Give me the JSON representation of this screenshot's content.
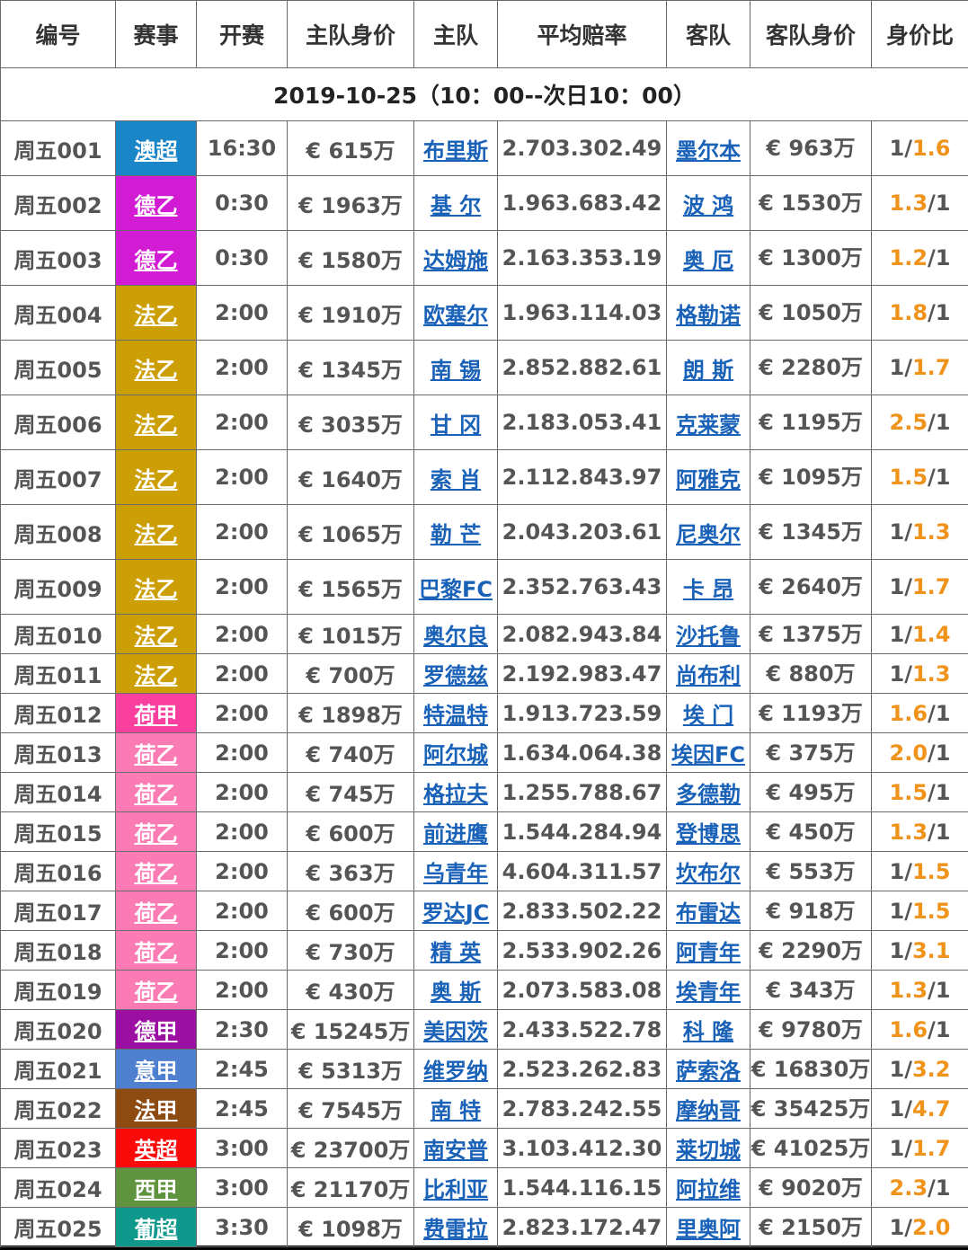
{
  "headers": [
    "编号",
    "赛事",
    "开赛",
    "主队身价",
    "主队",
    "平均赔率",
    "客队",
    "客队身价",
    "身价比"
  ],
  "date_title": "2019-10-25（10：00--次日10：00）",
  "rows": [
    {
      "id": "周五001",
      "league": "澳超",
      "color": "#1a86c8",
      "time": "16:30",
      "home_val": "€ 615万",
      "home": "布里斯",
      "odds": "2.703.302.49",
      "away": "墨尔本",
      "away_val": "€ 963万",
      "ratio": [
        "1/",
        "1.6"
      ]
    },
    {
      "id": "周五002",
      "league": "德乙",
      "color": "#d21cd4",
      "time": "0:30",
      "home_val": "€ 1963万",
      "home": "基 尔",
      "odds": "1.963.683.42",
      "away": "波 鸿",
      "away_val": "€ 1530万",
      "ratio": [
        "1.3",
        "/1"
      ]
    },
    {
      "id": "周五003",
      "league": "德乙",
      "color": "#d21cd4",
      "time": "0:30",
      "home_val": "€ 1580万",
      "home": "达姆施",
      "odds": "2.163.353.19",
      "away": "奥 厄",
      "away_val": "€ 1300万",
      "ratio": [
        "1.2",
        "/1"
      ]
    },
    {
      "id": "周五004",
      "league": "法乙",
      "color": "#cc9f06",
      "time": "2:00",
      "home_val": "€ 1910万",
      "home": "欧塞尔",
      "odds": "1.963.114.03",
      "away": "格勒诺",
      "away_val": "€ 1050万",
      "ratio": [
        "1.8",
        "/1"
      ]
    },
    {
      "id": "周五005",
      "league": "法乙",
      "color": "#cc9f06",
      "time": "2:00",
      "home_val": "€ 1345万",
      "home": "南 锡",
      "odds": "2.852.882.61",
      "away": "朗 斯",
      "away_val": "€ 2280万",
      "ratio": [
        "1/",
        "1.7"
      ]
    },
    {
      "id": "周五006",
      "league": "法乙",
      "color": "#cc9f06",
      "time": "2:00",
      "home_val": "€ 3035万",
      "home": "甘 冈",
      "odds": "2.183.053.41",
      "away": "克莱蒙",
      "away_val": "€ 1195万",
      "ratio": [
        "2.5",
        "/1"
      ]
    },
    {
      "id": "周五007",
      "league": "法乙",
      "color": "#cc9f06",
      "time": "2:00",
      "home_val": "€ 1640万",
      "home": "索 肖",
      "odds": "2.112.843.97",
      "away": "阿雅克",
      "away_val": "€ 1095万",
      "ratio": [
        "1.5",
        "/1"
      ]
    },
    {
      "id": "周五008",
      "league": "法乙",
      "color": "#cc9f06",
      "time": "2:00",
      "home_val": "€ 1065万",
      "home": "勒 芒",
      "odds": "2.043.203.61",
      "away": "尼奥尔",
      "away_val": "€ 1345万",
      "ratio": [
        "1/",
        "1.3"
      ]
    },
    {
      "id": "周五009",
      "league": "法乙",
      "color": "#cc9f06",
      "time": "2:00",
      "home_val": "€ 1565万",
      "home": "巴黎FC",
      "odds": "2.352.763.43",
      "away": "卡 昂",
      "away_val": "€ 2640万",
      "ratio": [
        "1/",
        "1.7"
      ]
    },
    {
      "id": "周五010",
      "league": "法乙",
      "color": "#cc9f06",
      "time": "2:00",
      "home_val": "€ 1015万",
      "home": "奥尔良",
      "odds": "2.082.943.84",
      "away": "沙托鲁",
      "away_val": "€ 1375万",
      "ratio": [
        "1/",
        "1.4"
      ]
    },
    {
      "id": "周五011",
      "league": "法乙",
      "color": "#cc9f06",
      "time": "2:00",
      "home_val": "€ 700万",
      "home": "罗德兹",
      "odds": "2.192.983.47",
      "away": "尚布利",
      "away_val": "€ 880万",
      "ratio": [
        "1/",
        "1.3"
      ]
    },
    {
      "id": "周五012",
      "league": "荷甲",
      "color": "#f9409f",
      "time": "2:00",
      "home_val": "€ 1898万",
      "home": "特温特",
      "odds": "1.913.723.59",
      "away": "埃 门",
      "away_val": "€ 1193万",
      "ratio": [
        "1.6",
        "/1"
      ]
    },
    {
      "id": "周五013",
      "league": "荷乙",
      "color": "#fb7cb5",
      "time": "2:00",
      "home_val": "€ 740万",
      "home": "阿尔城",
      "odds": "1.634.064.38",
      "away": "埃因FC",
      "away_val": "€ 375万",
      "ratio": [
        "2.0",
        "/1"
      ]
    },
    {
      "id": "周五014",
      "league": "荷乙",
      "color": "#fb7cb5",
      "time": "2:00",
      "home_val": "€ 745万",
      "home": "格拉夫",
      "odds": "1.255.788.67",
      "away": "多德勒",
      "away_val": "€ 495万",
      "ratio": [
        "1.5",
        "/1"
      ]
    },
    {
      "id": "周五015",
      "league": "荷乙",
      "color": "#fb7cb5",
      "time": "2:00",
      "home_val": "€ 600万",
      "home": "前进鹰",
      "odds": "1.544.284.94",
      "away": "登博思",
      "away_val": "€ 450万",
      "ratio": [
        "1.3",
        "/1"
      ]
    },
    {
      "id": "周五016",
      "league": "荷乙",
      "color": "#fb7cb5",
      "time": "2:00",
      "home_val": "€ 363万",
      "home": "乌青年",
      "odds": "4.604.311.57",
      "away": "坎布尔",
      "away_val": "€ 553万",
      "ratio": [
        "1/",
        "1.5"
      ]
    },
    {
      "id": "周五017",
      "league": "荷乙",
      "color": "#fb7cb5",
      "time": "2:00",
      "home_val": "€ 600万",
      "home": "罗达JC",
      "odds": "2.833.502.22",
      "away": "布雷达",
      "away_val": "€ 918万",
      "ratio": [
        "1/",
        "1.5"
      ]
    },
    {
      "id": "周五018",
      "league": "荷乙",
      "color": "#fb7cb5",
      "time": "2:00",
      "home_val": "€ 730万",
      "home": "精 英",
      "odds": "2.533.902.26",
      "away": "阿青年",
      "away_val": "€ 2290万",
      "ratio": [
        "1/",
        "3.1"
      ]
    },
    {
      "id": "周五019",
      "league": "荷乙",
      "color": "#fb7cb5",
      "time": "2:00",
      "home_val": "€ 430万",
      "home": "奥 斯",
      "odds": "2.073.583.08",
      "away": "埃青年",
      "away_val": "€ 343万",
      "ratio": [
        "1.3",
        "/1"
      ]
    },
    {
      "id": "周五020",
      "league": "德甲",
      "color": "#9c0fa3",
      "time": "2:30",
      "home_val": "€ 15245万",
      "home": "美因茨",
      "odds": "2.433.522.78",
      "away": "科 隆",
      "away_val": "€ 9780万",
      "ratio": [
        "1.6",
        "/1"
      ]
    },
    {
      "id": "周五021",
      "league": "意甲",
      "color": "#4f7fcf",
      "time": "2:45",
      "home_val": "€ 5313万",
      "home": "维罗纳",
      "odds": "2.523.262.83",
      "away": "萨索洛",
      "away_val": "€ 16830万",
      "ratio": [
        "1/",
        "3.2"
      ]
    },
    {
      "id": "周五022",
      "league": "法甲",
      "color": "#8d4b12",
      "time": "2:45",
      "home_val": "€ 7545万",
      "home": "南 特",
      "odds": "2.783.242.55",
      "away": "摩纳哥",
      "away_val": "€ 35425万",
      "ratio": [
        "1/",
        "4.7"
      ]
    },
    {
      "id": "周五023",
      "league": "英超",
      "color": "#fb0a0a",
      "time": "3:00",
      "home_val": "€ 23700万",
      "home": "南安普",
      "odds": "3.103.412.30",
      "away": "莱切城",
      "away_val": "€ 41025万",
      "ratio": [
        "1/",
        "1.7"
      ]
    },
    {
      "id": "周五024",
      "league": "西甲",
      "color": "#60933d",
      "time": "3:00",
      "home_val": "€ 21170万",
      "home": "比利亚",
      "odds": "1.544.116.15",
      "away": "阿拉维",
      "away_val": "€ 9020万",
      "ratio": [
        "2.3",
        "/1"
      ]
    },
    {
      "id": "周五025",
      "league": "葡超",
      "color": "#0f998c",
      "time": "3:30",
      "home_val": "€ 1098万",
      "home": "费雷拉",
      "odds": "2.823.172.47",
      "away": "里奥阿",
      "away_val": "€ 2150万",
      "ratio": [
        "1/",
        "2.0"
      ]
    }
  ]
}
